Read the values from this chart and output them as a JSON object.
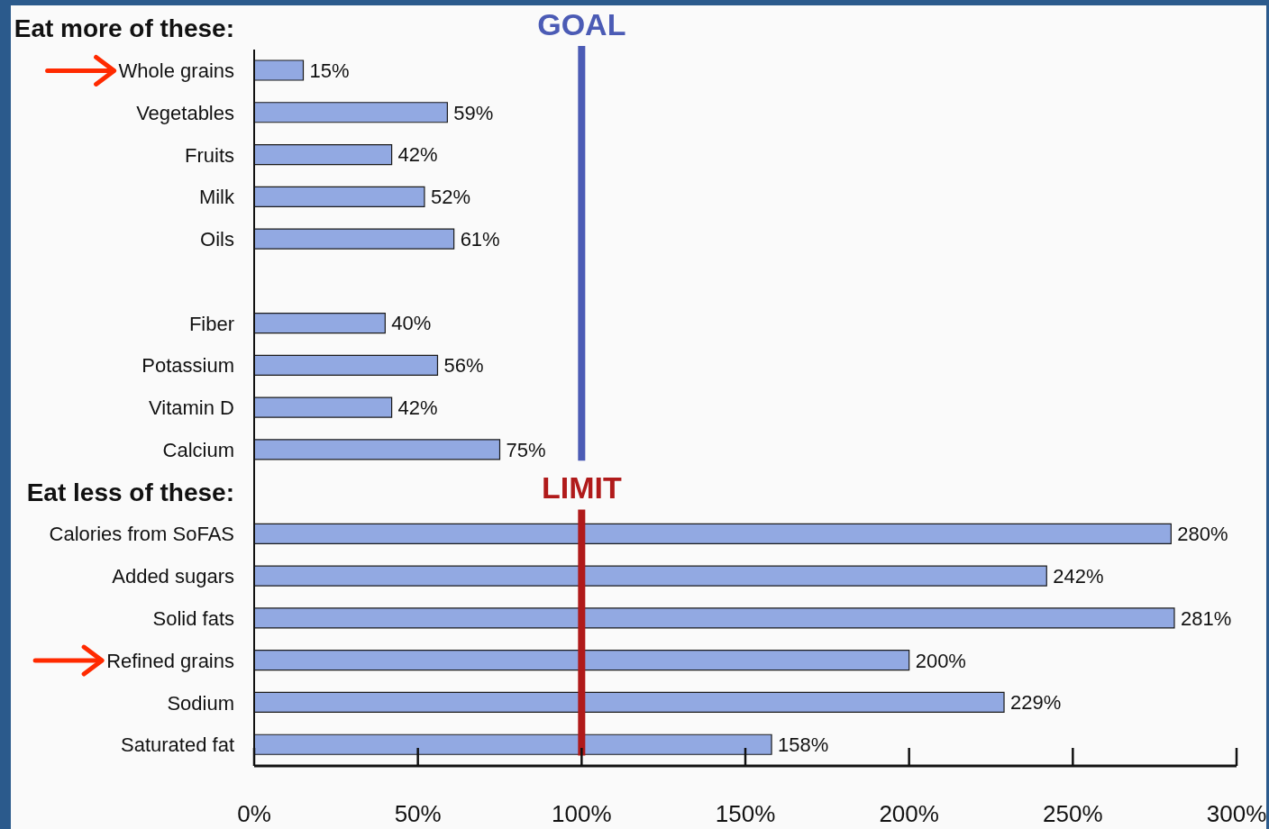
{
  "chart_data": {
    "type": "bar",
    "orientation": "horizontal",
    "categories": [
      "Whole grains",
      "Vegetables",
      "Fruits",
      "Milk",
      "Oils",
      null,
      "Fiber",
      "Potassium",
      "Vitamin D",
      "Calcium",
      null,
      "Calories from SoFAS",
      "Added sugars",
      "Solid fats",
      "Refined grains",
      "Sodium",
      "Saturated fat"
    ],
    "values": [
      15,
      59,
      42,
      52,
      61,
      null,
      40,
      56,
      42,
      75,
      null,
      280,
      242,
      281,
      200,
      229,
      158
    ],
    "value_labels": [
      "15%",
      "59%",
      "42%",
      "52%",
      "61%",
      null,
      "40%",
      "56%",
      "42%",
      "75%",
      null,
      "280%",
      "242%",
      "281%",
      "200%",
      "229%",
      "158%"
    ],
    "color": "#92a9e2",
    "xlim": [
      0,
      300
    ],
    "xticks": [
      {
        "value": 0,
        "label": "0%"
      },
      {
        "value": 50,
        "label": "50%"
      },
      {
        "value": 100,
        "label": "100%"
      },
      {
        "value": 150,
        "label": "150%"
      },
      {
        "value": 200,
        "label": "200%"
      },
      {
        "value": 250,
        "label": "250%"
      },
      {
        "value": 300,
        "label": "300%"
      }
    ],
    "ref_lines": [
      {
        "axis": "x",
        "value": 100,
        "label": "GOAL",
        "color": "#4b5bb5"
      },
      {
        "axis": "x",
        "value": 100,
        "label": "LIMIT",
        "color": "#b01a1a"
      }
    ],
    "annotations": [
      "Eat more of these:",
      "Eat less of these:"
    ]
  }
}
